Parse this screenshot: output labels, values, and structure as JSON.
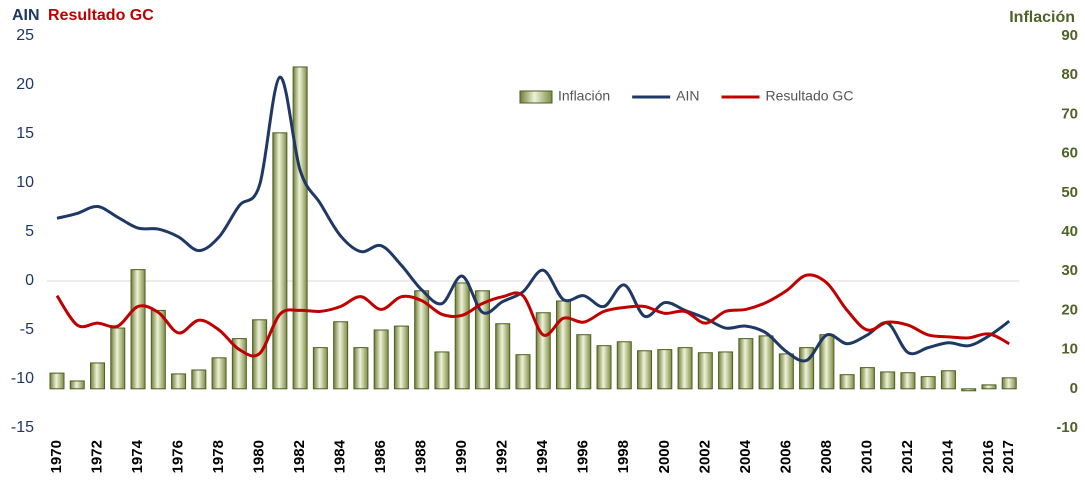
{
  "chart_data": {
    "type": "bar_line",
    "title_parts": [
      "AIN",
      "Resultado GC"
    ],
    "y2_title": "Inflación",
    "categories": [
      "1970",
      null,
      "1972",
      null,
      "1974",
      null,
      "1976",
      null,
      "1978",
      null,
      "1980",
      null,
      "1982",
      null,
      "1984",
      null,
      "1986",
      null,
      "1988",
      null,
      "1990",
      null,
      "1992",
      null,
      "1994",
      null,
      "1996",
      null,
      "1998",
      null,
      "2000",
      null,
      "2002",
      null,
      "2004",
      null,
      "2006",
      null,
      "2008",
      null,
      "2010",
      null,
      "2012",
      null,
      "2014",
      null,
      "2016",
      "2017"
    ],
    "series": [
      {
        "name": "Inflación",
        "type": "bar",
        "axis": "y2",
        "color": "#b8c47f",
        "values": [
          4,
          2,
          6.6,
          15.5,
          30.4,
          20,
          3.8,
          4.8,
          7.9,
          12.8,
          17.6,
          65.3,
          82.1,
          10.5,
          17.1,
          10.5,
          15,
          16,
          25,
          9.4,
          27,
          25,
          16.6,
          8.7,
          19.4,
          22.4,
          13.8,
          11,
          12,
          9.7,
          10,
          10.5,
          9.2,
          9.4,
          12.8,
          13.5,
          8.9,
          10.5,
          13.8,
          3.6,
          5.4,
          4.3,
          4.1,
          3.1,
          4.6,
          -0.5,
          1,
          2.8
        ]
      },
      {
        "name": "AIN",
        "type": "line",
        "color": "#1f3864",
        "values": [
          6.4,
          6.9,
          7.6,
          6.5,
          5.4,
          5.3,
          4.5,
          3.1,
          4.5,
          7.7,
          9.8,
          20.8,
          11.3,
          7.9,
          4.6,
          3.0,
          3.6,
          1.6,
          -0.9,
          -2.3,
          0.5,
          -3.2,
          -2.1,
          -1.1,
          1.1,
          -1.9,
          -1.5,
          -2.6,
          -0.4,
          -3.6,
          -2.2,
          -3.0,
          -3.8,
          -4.8,
          -4.6,
          -5.3,
          -7.2,
          -8.1,
          -5.5,
          -6.4,
          -5.5,
          -4.3,
          -7.3,
          -6.8,
          -6.3,
          -6.6,
          -5.6,
          -4.1
        ]
      },
      {
        "name": "Resultado GC",
        "type": "line",
        "color": "#c00000",
        "values": [
          -1.5,
          -4.5,
          -4.3,
          -4.6,
          -2.6,
          -3.2,
          -5.3,
          -4.0,
          -5.0,
          -7.0,
          -7.4,
          -3.4,
          -3.0,
          -3.1,
          -2.6,
          -1.6,
          -2.9,
          -1.6,
          -2.0,
          -3.4,
          -3.5,
          -2.3,
          -1.6,
          -1.5,
          -5.5,
          -3.8,
          -4.2,
          -3.1,
          -2.7,
          -2.6,
          -3.3,
          -3.1,
          -4.3,
          -3.1,
          -2.9,
          -2.2,
          -1.0,
          0.6,
          -0.2,
          -3.0,
          -5.0,
          -4.2,
          -4.5,
          -5.5,
          -5.7,
          -5.8,
          -5.4,
          -6.4
        ]
      }
    ],
    "ylim": [
      -15,
      25
    ],
    "yticks": [
      -15,
      -10,
      -5,
      0,
      5,
      10,
      15,
      20,
      25
    ],
    "y2lim": [
      -10,
      90
    ],
    "y2ticks": [
      -10,
      0,
      10,
      20,
      30,
      40,
      50,
      60,
      70,
      80,
      90
    ],
    "zero_line": true
  }
}
